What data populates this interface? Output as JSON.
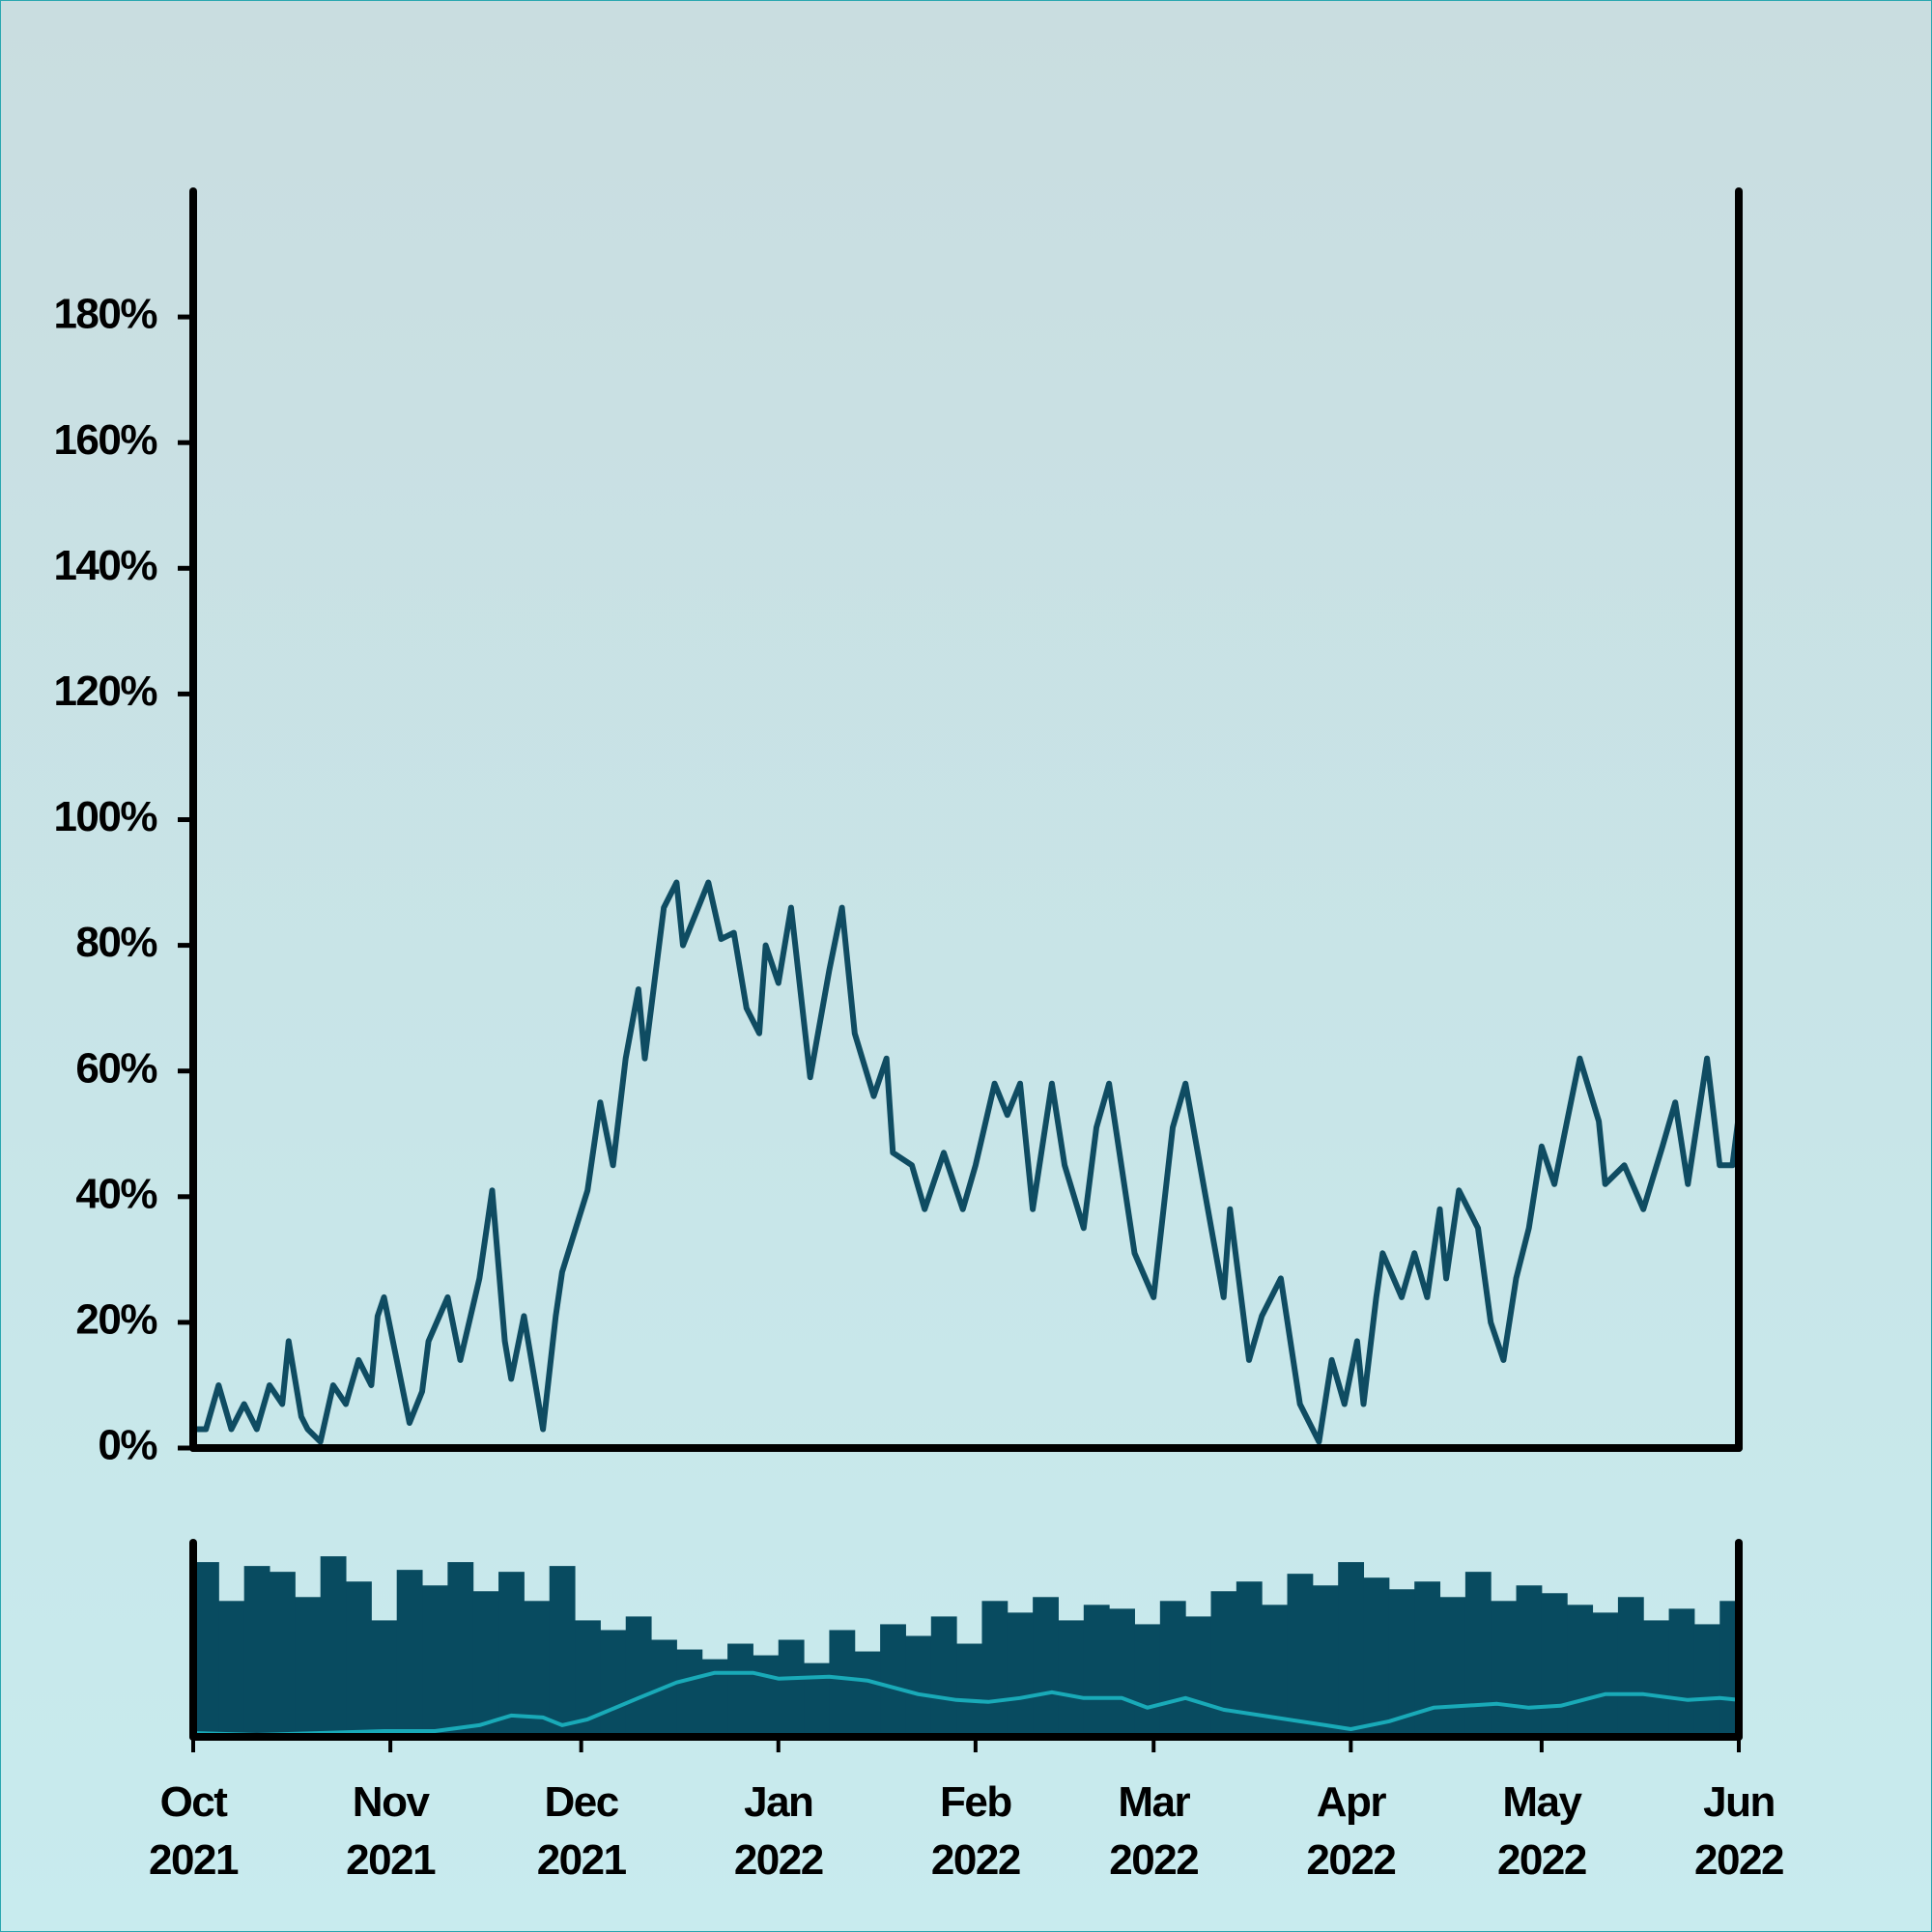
{
  "chart_data": [
    {
      "type": "line",
      "color": "#0f4c62",
      "x": [
        0,
        2,
        4,
        6,
        8,
        10,
        12,
        14,
        15,
        17,
        18,
        20,
        22,
        24,
        26,
        28,
        29,
        30,
        32,
        34,
        36,
        37,
        40,
        42,
        45,
        47,
        49,
        50,
        52,
        55,
        57,
        58,
        62,
        64,
        66,
        68,
        70,
        71,
        74,
        76,
        77,
        81,
        83,
        85,
        87,
        89,
        90,
        92,
        94,
        97,
        100,
        102,
        104,
        107,
        109,
        110,
        113,
        115,
        118,
        121,
        123,
        126,
        128,
        130,
        132,
        135,
        137,
        140,
        142,
        144,
        148,
        151,
        154,
        156,
        159,
        162,
        163,
        166,
        168,
        171,
        174,
        177,
        179,
        181,
        183,
        184,
        186,
        187,
        190,
        192,
        194,
        196,
        197,
        199,
        202,
        204,
        206,
        208,
        210,
        212,
        214,
        216,
        218,
        221,
        222,
        225,
        228,
        231,
        233,
        235,
        238,
        240,
        242,
        243
      ],
      "values": [
        3,
        3,
        10,
        3,
        7,
        3,
        10,
        7,
        17,
        5,
        3,
        1,
        10,
        7,
        14,
        10,
        21,
        24,
        14,
        4,
        9,
        17,
        24,
        14,
        27,
        41,
        17,
        11,
        21,
        3,
        21,
        28,
        41,
        55,
        45,
        62,
        73,
        62,
        86,
        90,
        80,
        90,
        81,
        82,
        70,
        66,
        80,
        74,
        86,
        59,
        76,
        86,
        66,
        56,
        62,
        47,
        45,
        38,
        47,
        38,
        45,
        58,
        53,
        58,
        38,
        58,
        45,
        35,
        51,
        58,
        31,
        24,
        51,
        58,
        41,
        24,
        38,
        14,
        21,
        27,
        7,
        1,
        14,
        7,
        17,
        7,
        24,
        31,
        24,
        31,
        24,
        38,
        27,
        41,
        35,
        20,
        14,
        27,
        35,
        48,
        42,
        52,
        62,
        52,
        42,
        45,
        38,
        48,
        55,
        42,
        62,
        45,
        45,
        53
      ],
      "xlim": [
        0,
        243
      ],
      "ylim": [
        0,
        200
      ],
      "yticks": [
        {
          "value": 0,
          "label": "0%"
        },
        {
          "value": 20,
          "label": "20%"
        },
        {
          "value": 40,
          "label": "40%"
        },
        {
          "value": 60,
          "label": "60%"
        },
        {
          "value": 80,
          "label": "80%"
        },
        {
          "value": 100,
          "label": "100%"
        },
        {
          "value": 120,
          "label": "120%"
        },
        {
          "value": 140,
          "label": "140%"
        },
        {
          "value": 160,
          "label": "160%"
        },
        {
          "value": 180,
          "label": "180%"
        }
      ]
    },
    {
      "type": "bar",
      "color": "#084b60",
      "x": [
        0,
        4,
        8,
        12,
        16,
        20,
        24,
        28,
        32,
        36,
        40,
        44,
        48,
        52,
        56,
        60,
        64,
        68,
        72,
        76,
        80,
        84,
        88,
        92,
        96,
        100,
        104,
        108,
        112,
        116,
        120,
        124,
        128,
        132,
        136,
        140,
        144,
        148,
        152,
        156,
        160,
        164,
        168,
        172,
        176,
        180,
        184,
        188,
        192,
        196,
        200,
        204,
        208,
        212,
        216,
        220,
        224,
        228,
        232,
        236,
        240
      ],
      "values": [
        90,
        70,
        88,
        85,
        72,
        93,
        80,
        60,
        86,
        78,
        90,
        75,
        85,
        70,
        88,
        60,
        55,
        62,
        50,
        45,
        40,
        48,
        42,
        50,
        38,
        55,
        44,
        58,
        52,
        62,
        48,
        70,
        64,
        72,
        60,
        68,
        66,
        58,
        70,
        62,
        75,
        80,
        68,
        84,
        78,
        90,
        82,
        76,
        80,
        72,
        85,
        70,
        78,
        74,
        68,
        64,
        72,
        60,
        66,
        58,
        70
      ],
      "xlim": [
        0,
        243
      ],
      "ylim": [
        0,
        100
      ],
      "xticks": [
        {
          "value": 0,
          "label": "Oct 2021"
        },
        {
          "value": 31,
          "label": "Nov 2021"
        },
        {
          "value": 61,
          "label": "Dec 2021"
        },
        {
          "value": 92,
          "label": "Jan 2022"
        },
        {
          "value": 123,
          "label": "Feb 2022"
        },
        {
          "value": 151,
          "label": "Mar 2022"
        },
        {
          "value": 182,
          "label": "Apr 2022"
        },
        {
          "value": 212,
          "label": "May 2022"
        },
        {
          "value": 243,
          "label": "Jun 2022"
        }
      ]
    },
    {
      "type": "line",
      "color": "#19aab8",
      "x": [
        0,
        10,
        20,
        30,
        38,
        45,
        50,
        55,
        58,
        62,
        70,
        76,
        82,
        88,
        92,
        100,
        106,
        114,
        120,
        125,
        130,
        135,
        140,
        146,
        150,
        156,
        162,
        170,
        178,
        182,
        188,
        195,
        205,
        210,
        215,
        222,
        228,
        235,
        240,
        243
      ],
      "values": [
        2,
        1,
        2,
        3,
        3,
        6,
        11,
        10,
        6,
        9,
        20,
        28,
        33,
        33,
        30,
        31,
        29,
        22,
        19,
        18,
        20,
        23,
        20,
        20,
        15,
        20,
        14,
        10,
        6,
        4,
        8,
        15,
        17,
        15,
        16,
        22,
        22,
        19,
        20,
        19
      ],
      "xlim": [
        0,
        243
      ],
      "ylim": [
        0,
        100
      ]
    }
  ]
}
